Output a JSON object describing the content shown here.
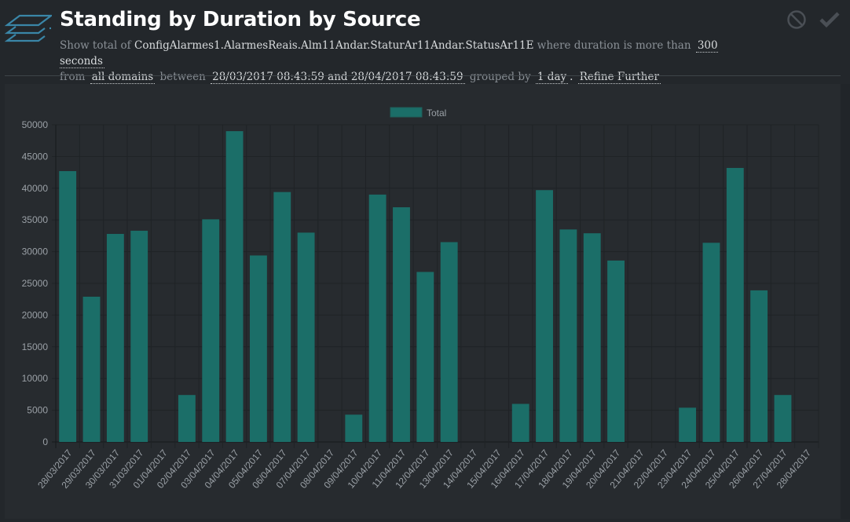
{
  "header": {
    "icon": "layers-icon",
    "title": "Standing by Duration by Source",
    "desc": {
      "show_total_of": "Show total of",
      "source": "ConfigAlarmes1.AlarmesReais.Alm11Andar.StaturAr11Andar.StatusAr11E",
      "where_duration": "where duration is more than",
      "duration": "300 seconds",
      "from": "from",
      "domains": "all domains",
      "between": "between",
      "range": "28/03/2017 08:43:59 and 28/04/2017 08:43:59",
      "grouped_by": "grouped by",
      "group": "1 day",
      "period": ".",
      "refine": "Refine Further"
    },
    "actions": {
      "cancel_icon": "ban-icon",
      "confirm_icon": "check-icon"
    }
  },
  "colors": {
    "bar": "#1b6e68",
    "background": "#23272b",
    "panel": "#272b2f"
  },
  "chart_data": {
    "type": "bar",
    "title": "",
    "xlabel": "",
    "ylabel": "",
    "ylim": [
      0,
      50000
    ],
    "yticks": [
      0,
      5000,
      10000,
      15000,
      20000,
      25000,
      30000,
      35000,
      40000,
      45000,
      50000
    ],
    "grid": true,
    "legend": {
      "position": "top-center",
      "entries": [
        "Total"
      ]
    },
    "categories": [
      "28/03/2017",
      "29/03/2017",
      "30/03/2017",
      "31/03/2017",
      "01/04/2017",
      "02/04/2017",
      "03/04/2017",
      "04/04/2017",
      "05/04/2017",
      "06/04/2017",
      "07/04/2017",
      "08/04/2017",
      "09/04/2017",
      "10/04/2017",
      "11/04/2017",
      "12/04/2017",
      "13/04/2017",
      "14/04/2017",
      "15/04/2017",
      "16/04/2017",
      "17/04/2017",
      "18/04/2017",
      "19/04/2017",
      "20/04/2017",
      "21/04/2017",
      "22/04/2017",
      "23/04/2017",
      "24/04/2017",
      "25/04/2017",
      "26/04/2017",
      "27/04/2017",
      "28/04/2017"
    ],
    "series": [
      {
        "name": "Total",
        "values": [
          42700,
          22900,
          32800,
          33300,
          0,
          7400,
          35100,
          49000,
          29400,
          39400,
          33000,
          0,
          4300,
          39000,
          37000,
          26800,
          31500,
          0,
          0,
          6000,
          39700,
          33500,
          32900,
          28600,
          0,
          0,
          5400,
          31400,
          43200,
          23900,
          7400,
          0
        ]
      }
    ]
  }
}
